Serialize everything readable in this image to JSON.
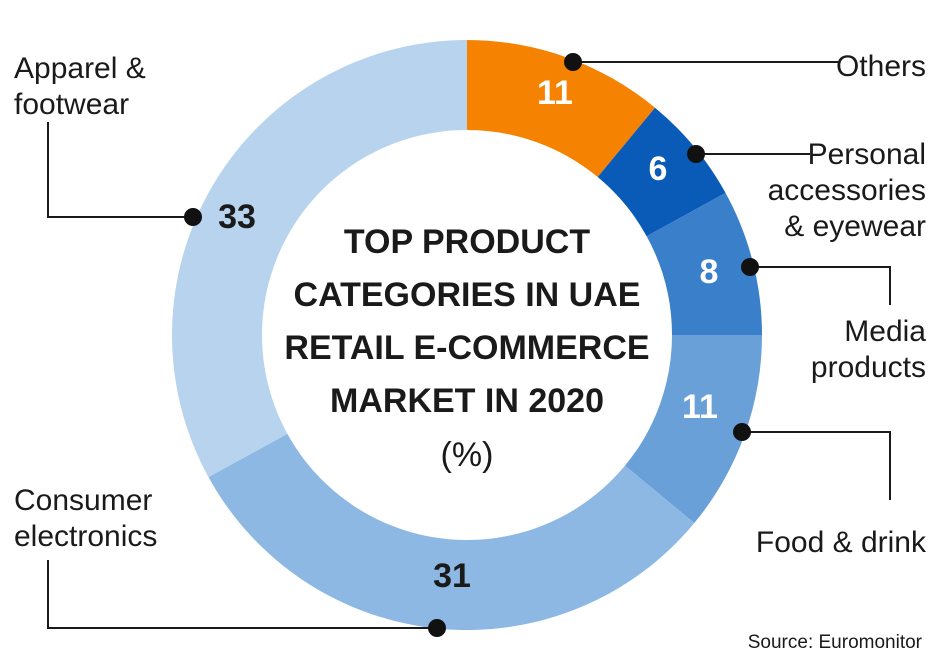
{
  "chart_data": {
    "type": "pie",
    "variant": "donut",
    "title_lines": [
      "TOP PRODUCT",
      "CATEGORIES IN UAE",
      "RETAIL E-COMMERCE",
      "MARKET IN 2020"
    ],
    "unit": "(%)",
    "slices": [
      {
        "label": "Others",
        "value": 11,
        "color": "#f58200",
        "label_color": "#ffffff"
      },
      {
        "label": "Personal accessories & eyewear",
        "value": 6,
        "color": "#0a5ab8",
        "label_color": "#ffffff"
      },
      {
        "label": "Media products",
        "value": 8,
        "color": "#3a7fc9",
        "label_color": "#ffffff"
      },
      {
        "label": "Food & drink",
        "value": 11,
        "color": "#6aa0d8",
        "label_color": "#ffffff"
      },
      {
        "label": "Consumer electronics",
        "value": 31,
        "color": "#8db8e3",
        "label_color": "#1a1a1a"
      },
      {
        "label": "Apparel & footwear",
        "value": 33,
        "color": "#b8d3ee",
        "label_color": "#1a1a1a"
      }
    ],
    "source": "Source: Euromonitor"
  }
}
